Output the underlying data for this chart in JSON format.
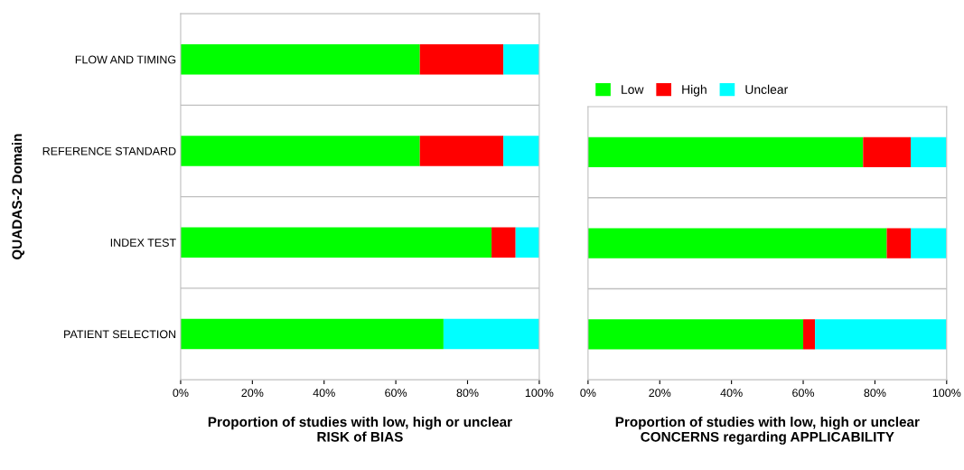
{
  "chart_data": [
    {
      "type": "bar",
      "orientation": "horizontal",
      "stacked": true,
      "ylabel": "QUADAS-2 Domain",
      "xlabel": "Proportion of studies with low, high or unclear\nRISK of BIAS",
      "categories": [
        "FLOW AND TIMING",
        "REFERENCE STANDARD",
        "INDEX TEST",
        "PATIENT SELECTION"
      ],
      "series": [
        {
          "color": "#00ff00",
          "values": [
            66.7,
            66.7,
            86.7,
            73.3
          ]
        },
        {
          "color": "#ff0000",
          "values": [
            23.3,
            23.3,
            6.7,
            0
          ]
        },
        {
          "color": "#00ffff",
          "values": [
            10,
            10,
            6.6,
            26.7
          ]
        }
      ],
      "xlim": [
        0,
        100
      ],
      "xticks": [
        {
          "value": 0,
          "label": "0%"
        },
        {
          "value": 20,
          "label": "20%"
        },
        {
          "value": 40,
          "label": "40%"
        },
        {
          "value": 60,
          "label": "60%"
        },
        {
          "value": 80,
          "label": "80%"
        },
        {
          "value": 100,
          "label": "100%"
        }
      ],
      "grid": "y",
      "legend": false
    },
    {
      "type": "bar",
      "orientation": "horizontal",
      "stacked": true,
      "xlabel": "Proportion of studies with low, high or unclear\nCONCERNS regarding APPLICABILITY",
      "categories": [
        null,
        null,
        null
      ],
      "series": [
        {
          "name": "Low",
          "color": "#00ff00",
          "values": [
            76.7,
            83.3,
            60
          ]
        },
        {
          "name": "High",
          "color": "#ff0000",
          "values": [
            13.3,
            6.7,
            3.3
          ]
        },
        {
          "name": "Unclear",
          "color": "#00ffff",
          "values": [
            10,
            10,
            36.7
          ]
        }
      ],
      "xlim": [
        0,
        100
      ],
      "xticks": [
        {
          "value": 0,
          "label": "0%"
        },
        {
          "value": 20,
          "label": "20%"
        },
        {
          "value": 40,
          "label": "40%"
        },
        {
          "value": 60,
          "label": "60%"
        },
        {
          "value": 80,
          "label": "80%"
        },
        {
          "value": 100,
          "label": "100%"
        }
      ],
      "grid": "y",
      "legend": "top left"
    }
  ]
}
